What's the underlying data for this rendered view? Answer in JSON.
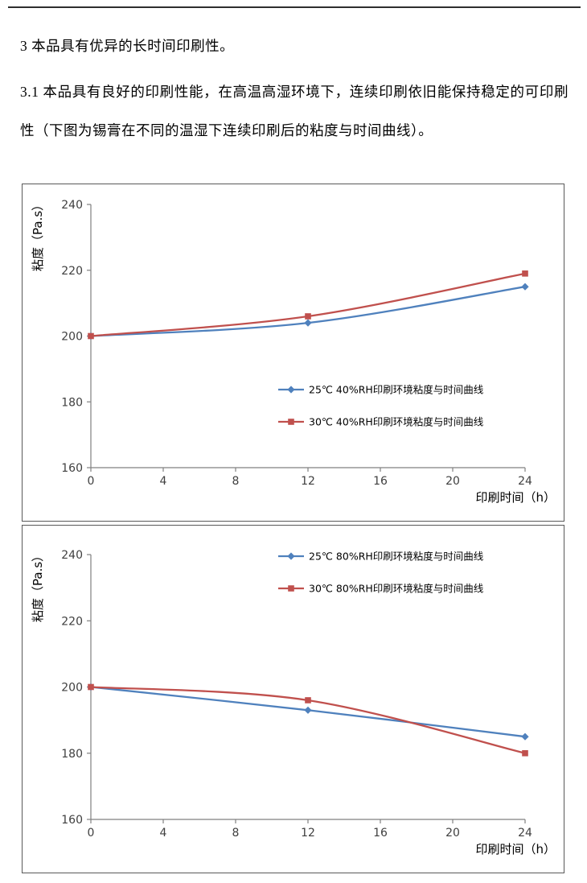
{
  "page": {
    "paragraph_heading": "3 本品具有优异的长时间印刷性。",
    "paragraph_body": "3.1 本品具有良好的印刷性能，在高温高湿环境下，连续印刷依旧能保持稳定的可印刷性（下图为锡膏在不同的温湿下连续印刷后的粘度与时间曲线）。"
  },
  "colors": {
    "series_blue": "#4F81BD",
    "series_red": "#C0504D",
    "axis_gray": "#808080",
    "tick_text": "#3f3f3f"
  },
  "chart_data": [
    {
      "type": "line",
      "title": "",
      "x": [
        0,
        12,
        24
      ],
      "series": [
        {
          "name": "25℃ 40%RH印刷环境粘度与时间曲线",
          "values": [
            200,
            204,
            215
          ],
          "color": "#4F81BD",
          "marker": "diamond"
        },
        {
          "name": "30℃ 40%RH印刷环境粘度与时间曲线",
          "values": [
            200,
            206,
            219
          ],
          "color": "#C0504D",
          "marker": "square"
        }
      ],
      "xlabel": "印刷时间（h）",
      "ylabel": "粘度（Pa.s）",
      "xticks": [
        0,
        4,
        8,
        12,
        16,
        20,
        24
      ],
      "yticks": [
        160,
        180,
        200,
        220,
        240
      ],
      "xlim": [
        0,
        24
      ],
      "ylim": [
        160,
        240
      ],
      "grid": false,
      "legend_position": "center-right"
    },
    {
      "type": "line",
      "title": "",
      "x": [
        0,
        12,
        24
      ],
      "series": [
        {
          "name": "25℃ 80%RH印刷环境粘度与时间曲线",
          "values": [
            200,
            193,
            185
          ],
          "color": "#4F81BD",
          "marker": "diamond"
        },
        {
          "name": "30℃ 80%RH印刷环境粘度与时间曲线",
          "values": [
            200,
            196,
            180
          ],
          "color": "#C0504D",
          "marker": "square"
        }
      ],
      "xlabel": "印刷时间（h）",
      "ylabel": "粘度（Pa.s）",
      "xticks": [
        0,
        4,
        8,
        12,
        16,
        20,
        24
      ],
      "yticks": [
        160,
        180,
        200,
        220,
        240
      ],
      "xlim": [
        0,
        24
      ],
      "ylim": [
        160,
        240
      ],
      "grid": false,
      "legend_position": "top-right"
    }
  ]
}
